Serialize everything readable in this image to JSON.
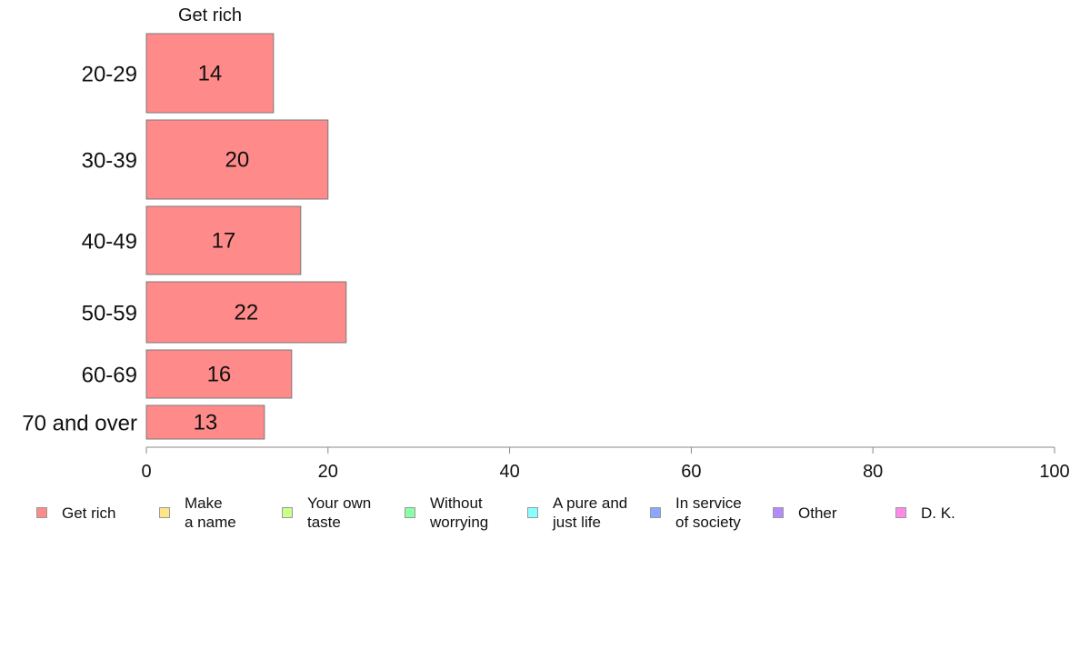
{
  "chart_data": {
    "type": "bar",
    "orientation": "horizontal",
    "panel_title": "Get rich",
    "categories": [
      "20-29",
      "30-39",
      "40-49",
      "50-59",
      "60-69",
      "70 and over"
    ],
    "series": [
      {
        "name": "Get rich",
        "values": [
          14,
          20,
          17,
          22,
          16,
          13
        ],
        "color": "#ff8a8a"
      }
    ],
    "data_labels": [
      "14",
      "20",
      "17",
      "22",
      "16",
      "13"
    ],
    "xlim": [
      0,
      100
    ],
    "xticks": [
      0,
      20,
      40,
      60,
      80,
      100
    ],
    "xtick_labels": [
      "0",
      "20",
      "40",
      "60",
      "80",
      "100"
    ],
    "grid": false,
    "legend_position": "bottom",
    "legend": [
      {
        "label": "Get rich",
        "color": "#ff8a8a"
      },
      {
        "label": "Make\na name",
        "color": "#ffe48a"
      },
      {
        "label": "Your own\ntaste",
        "color": "#ccff8a"
      },
      {
        "label": "Without\nworrying",
        "color": "#8affa8"
      },
      {
        "label": "A pure and\njust life",
        "color": "#8affff"
      },
      {
        "label": "In service\nof society",
        "color": "#8aa8ff"
      },
      {
        "label": "Other",
        "color": "#b48aff"
      },
      {
        "label": "D. K.",
        "color": "#ff8ae8"
      }
    ]
  }
}
